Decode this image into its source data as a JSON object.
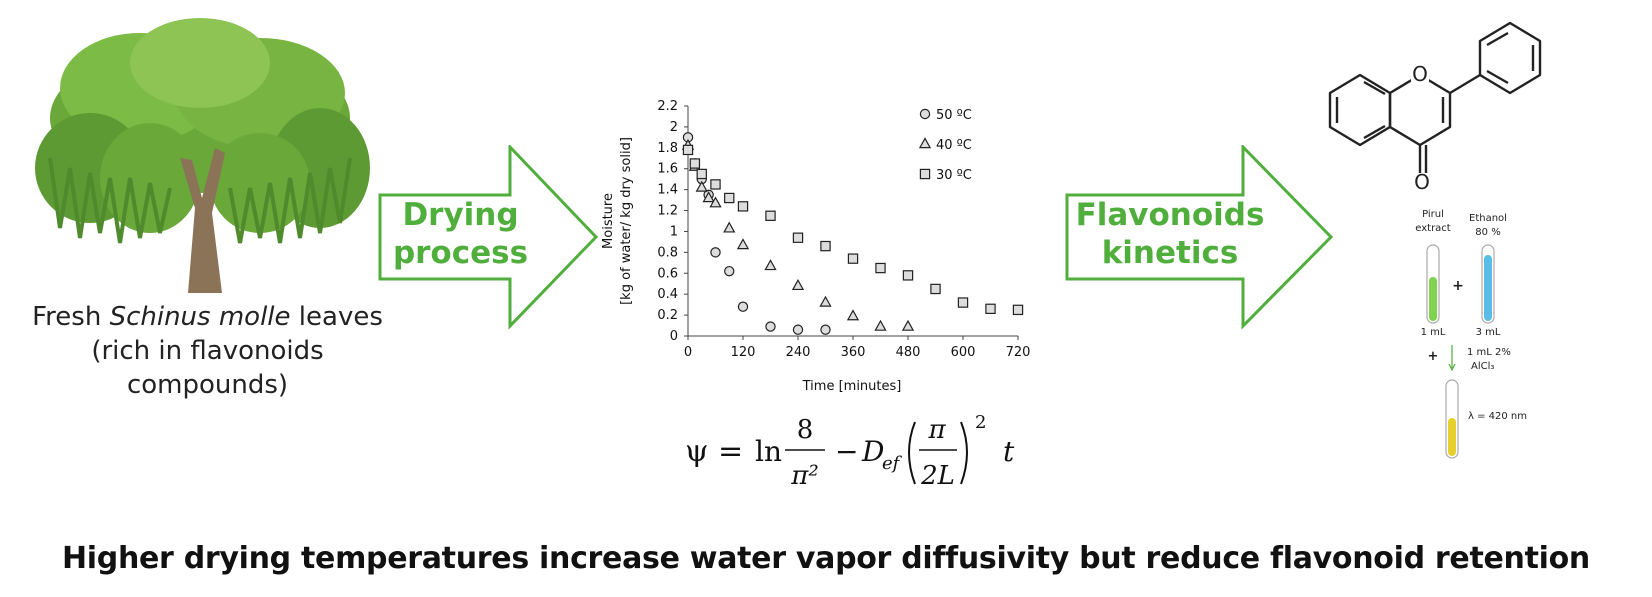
{
  "left": {
    "caption_pre": "Fresh ",
    "caption_species": "Schinus molle",
    "caption_post": " leaves (rich in flavonoids compounds)"
  },
  "arrows": {
    "drying_line1": "Drying",
    "drying_line2": "process",
    "flavonoids_line1": "Flavonoids",
    "flavonoids_line2": "kinetics"
  },
  "equation": {
    "lhs": "ψ =",
    "ln": "ln",
    "num1": "8",
    "den1": "π²",
    "minus": "−",
    "d": "D",
    "d_sub": "ef",
    "num2": "π",
    "den2": "2L",
    "exp": "2",
    "t": "t"
  },
  "assay": {
    "tube1_label_line1": "Pirul",
    "tube1_label_line2": "extract",
    "tube2_label_line1": "Ethanol",
    "tube2_label_line2": "80 %",
    "tube1_volume": "1 mL",
    "tube2_volume": "3 mL",
    "plus": "+",
    "reagent_line1": "1 mL 2%",
    "reagent_line2": "AlCl₃",
    "wavelength": "λ = 420 nm",
    "colors": {
      "extract": "#7fd34e",
      "ethanol": "#5bbde6",
      "result": "#e6cf2e"
    }
  },
  "headline": "Higher drying temperatures increase water vapor diffusivity but reduce flavonoid retention",
  "colors": {
    "arrow_green": "#4fae3c"
  },
  "chart_data": {
    "type": "scatter",
    "xlabel": "Time [minutes]",
    "ylabel_line1": "Moisture",
    "ylabel_line2": "[kg of water/ kg dry solid]",
    "xlim": [
      0,
      720
    ],
    "ylim": [
      0,
      2.2
    ],
    "xticks": [
      0,
      120,
      240,
      360,
      480,
      600,
      720
    ],
    "yticks": [
      0,
      0.2,
      0.4,
      0.6,
      0.8,
      1,
      1.2,
      1.4,
      1.6,
      1.8,
      2,
      2.2
    ],
    "legend_position": "top-right",
    "grid": false,
    "series": [
      {
        "name": "50 ºC",
        "marker": "circle",
        "x": [
          0,
          15,
          30,
          45,
          60,
          90,
          120,
          180,
          240,
          300
        ],
        "y": [
          1.9,
          1.65,
          1.5,
          1.35,
          0.8,
          0.62,
          0.28,
          0.09,
          0.06,
          0.06
        ]
      },
      {
        "name": "40 ºC",
        "marker": "triangle",
        "x": [
          0,
          15,
          30,
          45,
          60,
          90,
          120,
          180,
          240,
          300,
          360,
          420,
          480
        ],
        "y": [
          1.82,
          1.62,
          1.42,
          1.32,
          1.27,
          1.03,
          0.87,
          0.67,
          0.48,
          0.32,
          0.19,
          0.09,
          0.09
        ]
      },
      {
        "name": "30 ºC",
        "marker": "square",
        "x": [
          0,
          15,
          30,
          60,
          90,
          120,
          180,
          240,
          300,
          360,
          420,
          480,
          540,
          600,
          660,
          720
        ],
        "y": [
          1.78,
          1.65,
          1.55,
          1.45,
          1.32,
          1.24,
          1.15,
          0.94,
          0.86,
          0.74,
          0.65,
          0.58,
          0.45,
          0.32,
          0.26,
          0.25
        ]
      }
    ]
  }
}
